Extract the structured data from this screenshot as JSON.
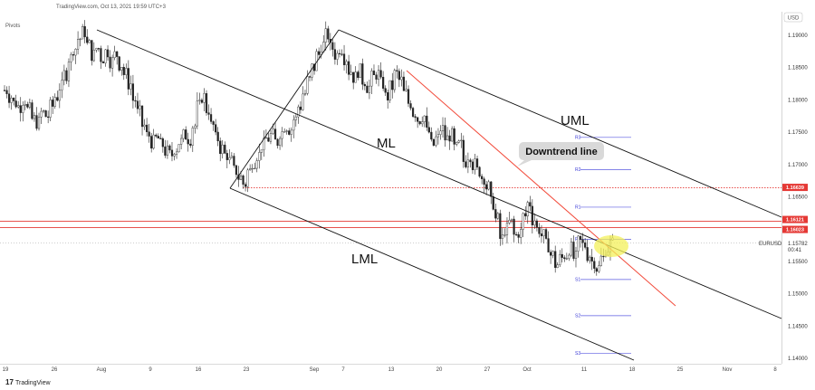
{
  "header": {
    "source_text": "TradingView.com, Oct 13, 2021 19:59 UTC+3",
    "pivots_label": "Pivots",
    "currency": "USD"
  },
  "footer": {
    "brand": "TradingView"
  },
  "chart_data": {
    "type": "candlestick",
    "symbol": "EURUSD",
    "current_price": "1.15782",
    "countdown": "00:41",
    "ylim": [
      1.14,
      1.1925
    ],
    "y_ticks": [
      "1.19000",
      "1.18500",
      "1.18000",
      "1.17500",
      "1.17000",
      "1.16500",
      "1.15500",
      "1.15000",
      "1.14500",
      "1.14000"
    ],
    "x_ticks": [
      "19",
      "26",
      "Aug",
      "9",
      "16",
      "23",
      "Sep",
      "7",
      "13",
      "20",
      "27",
      "Oct",
      "11",
      "18",
      "25",
      "Nov",
      "8"
    ],
    "highlighted_levels": [
      {
        "label": "1.16639",
        "value": 1.16639,
        "color": "#e53935",
        "style": "dotted"
      },
      {
        "label": "1.16121",
        "value": 1.16121,
        "color": "#e53935",
        "style": "solid"
      },
      {
        "label": "1.16023",
        "value": 1.16023,
        "color": "#e53935",
        "style": "solid"
      }
    ],
    "pivot_levels": [
      {
        "label": "R3",
        "value": 1.1742
      },
      {
        "label": "R2",
        "value": 1.1692
      },
      {
        "label": "R1",
        "value": 1.1634
      },
      {
        "label": "P",
        "value": 1.1584
      },
      {
        "label": "S1",
        "value": 1.1522
      },
      {
        "label": "S2",
        "value": 1.1466
      },
      {
        "label": "S3",
        "value": 1.1408
      }
    ],
    "annotations": {
      "uml": "UML",
      "ml": "ML",
      "lml": "LML",
      "downtrend": "Downtrend line"
    },
    "candle_trace": [
      1.1815,
      1.1805,
      1.1795,
      1.179,
      1.18,
      1.1785,
      1.177,
      1.1765,
      1.178,
      1.1775,
      1.179,
      1.1805,
      1.182,
      1.184,
      1.1865,
      1.188,
      1.1895,
      1.1905,
      1.1885,
      1.187,
      1.188,
      1.1865,
      1.1875,
      1.186,
      1.187,
      1.1855,
      1.184,
      1.1825,
      1.18,
      1.178,
      1.176,
      1.1745,
      1.1735,
      1.174,
      1.173,
      1.172,
      1.1715,
      1.1725,
      1.1735,
      1.1745,
      1.174,
      1.176,
      1.179,
      1.1805,
      1.1785,
      1.176,
      1.174,
      1.1725,
      1.1715,
      1.1705,
      1.169,
      1.168,
      1.167,
      1.169,
      1.1705,
      1.1715,
      1.173,
      1.174,
      1.1745,
      1.1735,
      1.175,
      1.176,
      1.1755,
      1.177,
      1.179,
      1.181,
      1.183,
      1.185,
      1.187,
      1.1885,
      1.19,
      1.188,
      1.187,
      1.188,
      1.1865,
      1.1845,
      1.1835,
      1.1845,
      1.183,
      1.182,
      1.1835,
      1.184,
      1.1825,
      1.1805,
      1.182,
      1.184,
      1.183,
      1.181,
      1.1795,
      1.178,
      1.177,
      1.1775,
      1.175,
      1.173,
      1.174,
      1.1755,
      1.174,
      1.1745,
      1.1725,
      1.173,
      1.1705,
      1.1715,
      1.17,
      1.169,
      1.168,
      1.1665,
      1.164,
      1.1615,
      1.1585,
      1.16,
      1.161,
      1.159,
      1.1595,
      1.162,
      1.164,
      1.1615,
      1.16,
      1.159,
      1.1575,
      1.156,
      1.1545,
      1.1555,
      1.156,
      1.157,
      1.1555,
      1.158,
      1.1575,
      1.156,
      1.155,
      1.154,
      1.1555,
      1.157,
      1.1578
    ]
  }
}
